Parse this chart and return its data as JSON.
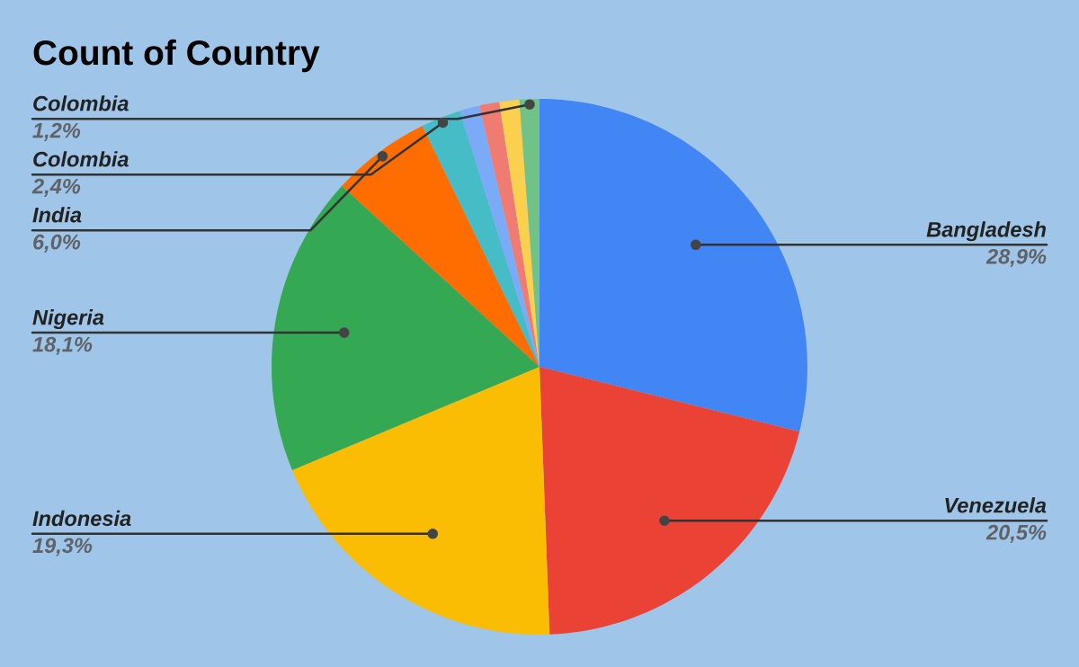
{
  "chart_data": {
    "type": "pie",
    "title": "Count of Country",
    "categories": [
      "Bangladesh",
      "Venezuela",
      "Indonesia",
      "Nigeria",
      "India",
      "Colombia",
      null,
      null,
      null,
      "Colombia"
    ],
    "values": [
      28.9,
      20.5,
      19.3,
      18.1,
      6.0,
      2.4,
      1.2,
      1.2,
      1.2,
      1.2
    ],
    "value_labels": [
      "28,9%",
      "20,5%",
      "19,3%",
      "18,1%",
      "6,0%",
      "2,4%",
      null,
      null,
      null,
      "1,2%"
    ],
    "colors": [
      "#4285f4",
      "#ea4335",
      "#fbbc04",
      "#34a853",
      "#ff6d01",
      "#46bdc6",
      "#7baaf7",
      "#f07b72",
      "#fcd04f",
      "#71c287"
    ],
    "legend": false
  }
}
